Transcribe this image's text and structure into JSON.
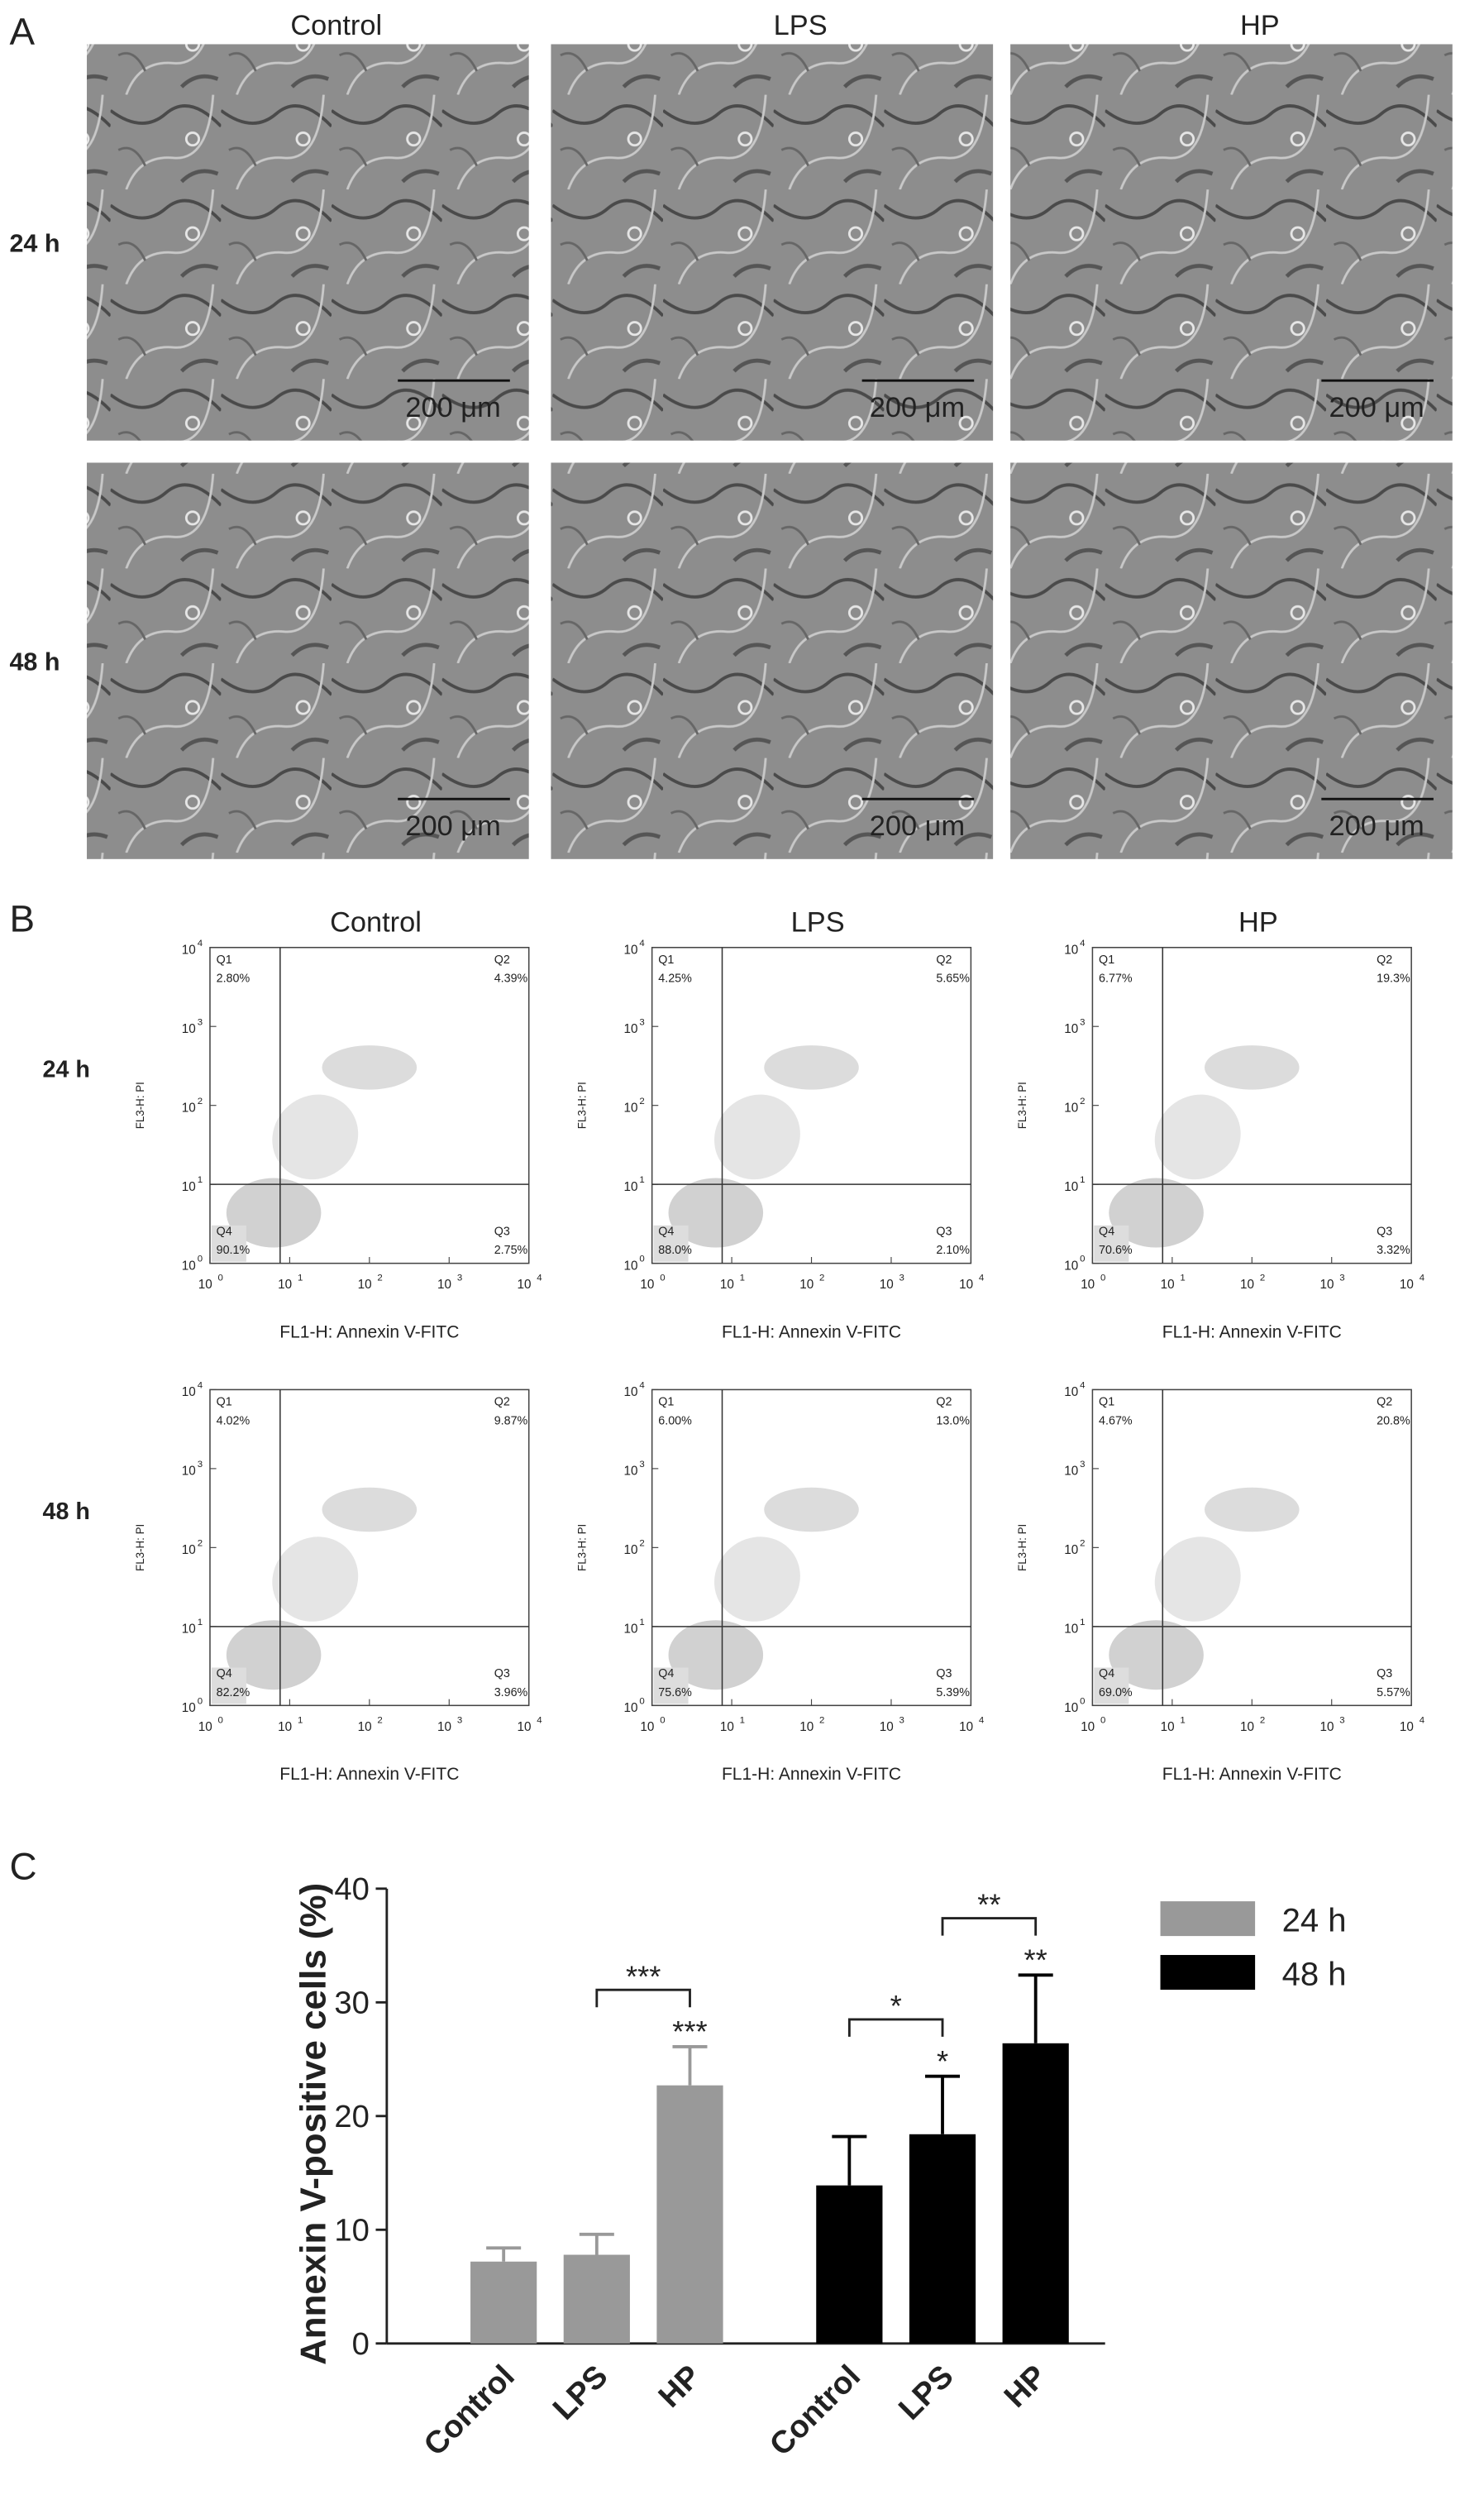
{
  "panel_labels": [
    "A",
    "B",
    "C"
  ],
  "panel_a": {
    "columns": [
      "Control",
      "LPS",
      "HP"
    ],
    "rows": [
      "24 h",
      "48 h"
    ],
    "scale_bar": "200 μm"
  },
  "panel_b": {
    "columns": [
      "Control",
      "LPS",
      "HP"
    ],
    "rows": [
      "24 h",
      "48 h"
    ],
    "x_label": "FL1-H: Annexin V-FITC",
    "y_label": "FL3-H: PI",
    "tick_base": "10",
    "tick_exponents": [
      0,
      1,
      2,
      3,
      4
    ],
    "quadrant_names": [
      "Q1",
      "Q2",
      "Q3",
      "Q4"
    ],
    "plots": [
      {
        "q1": "2.80%",
        "q2": "4.39%",
        "q3": "2.75%",
        "q4": "90.1%"
      },
      {
        "q1": "4.25%",
        "q2": "5.65%",
        "q3": "2.10%",
        "q4": "88.0%"
      },
      {
        "q1": "6.77%",
        "q2": "19.3%",
        "q3": "3.32%",
        "q4": "70.6%"
      },
      {
        "q1": "4.02%",
        "q2": "9.87%",
        "q3": "3.96%",
        "q4": "82.2%"
      },
      {
        "q1": "6.00%",
        "q2": "13.0%",
        "q3": "5.39%",
        "q4": "75.6%"
      },
      {
        "q1": "4.67%",
        "q2": "20.8%",
        "q3": "5.57%",
        "q4": "69.0%"
      }
    ]
  },
  "chart_data": {
    "type": "bar",
    "y_label": "Annexin V-positive cells (%)",
    "categories": [
      "Control",
      "LPS",
      "HP"
    ],
    "series": [
      {
        "name": "24 h",
        "color": "#999999",
        "values": [
          7.2,
          7.8,
          22.7
        ],
        "errors": [
          1.2,
          1.8,
          3.4
        ]
      },
      {
        "name": "48 h",
        "color": "#000000",
        "values": [
          13.9,
          18.4,
          26.4
        ],
        "errors": [
          4.3,
          5.1,
          6.0
        ]
      }
    ],
    "ylim": [
      0,
      40
    ],
    "yticks": [
      0,
      10,
      20,
      30,
      40
    ],
    "annotations": [
      {
        "text": "***",
        "series": "24 h",
        "category": "HP"
      },
      {
        "text": "*",
        "series": "48 h",
        "category": "LPS"
      },
      {
        "text": "**",
        "series": "48 h",
        "category": "HP"
      }
    ],
    "brackets": [
      {
        "text": "***",
        "series": "24 h",
        "from": "LPS",
        "to": "HP"
      },
      {
        "text": "*",
        "series": "48 h",
        "from": "Control",
        "to": "LPS"
      },
      {
        "text": "**",
        "series": "48 h",
        "from": "LPS",
        "to": "HP"
      }
    ]
  }
}
